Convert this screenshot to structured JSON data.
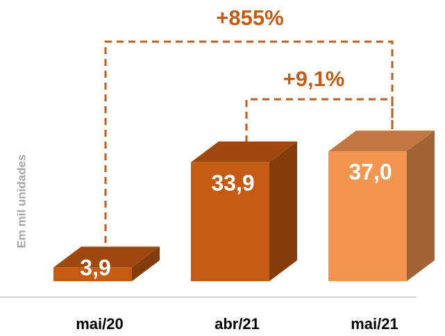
{
  "chart_data": {
    "type": "bar3d",
    "y_label": "Em mil unidades",
    "categories": [
      "mai/20",
      "abr/21",
      "mai/21"
    ],
    "values": [
      3.9,
      33.9,
      37.0
    ],
    "value_labels": [
      "3,9",
      "33,9",
      "37,0"
    ],
    "colors": [
      "#c55a11",
      "#c55a11",
      "#f4954f"
    ],
    "annotations": [
      "+855%",
      "+9,1%"
    ]
  }
}
